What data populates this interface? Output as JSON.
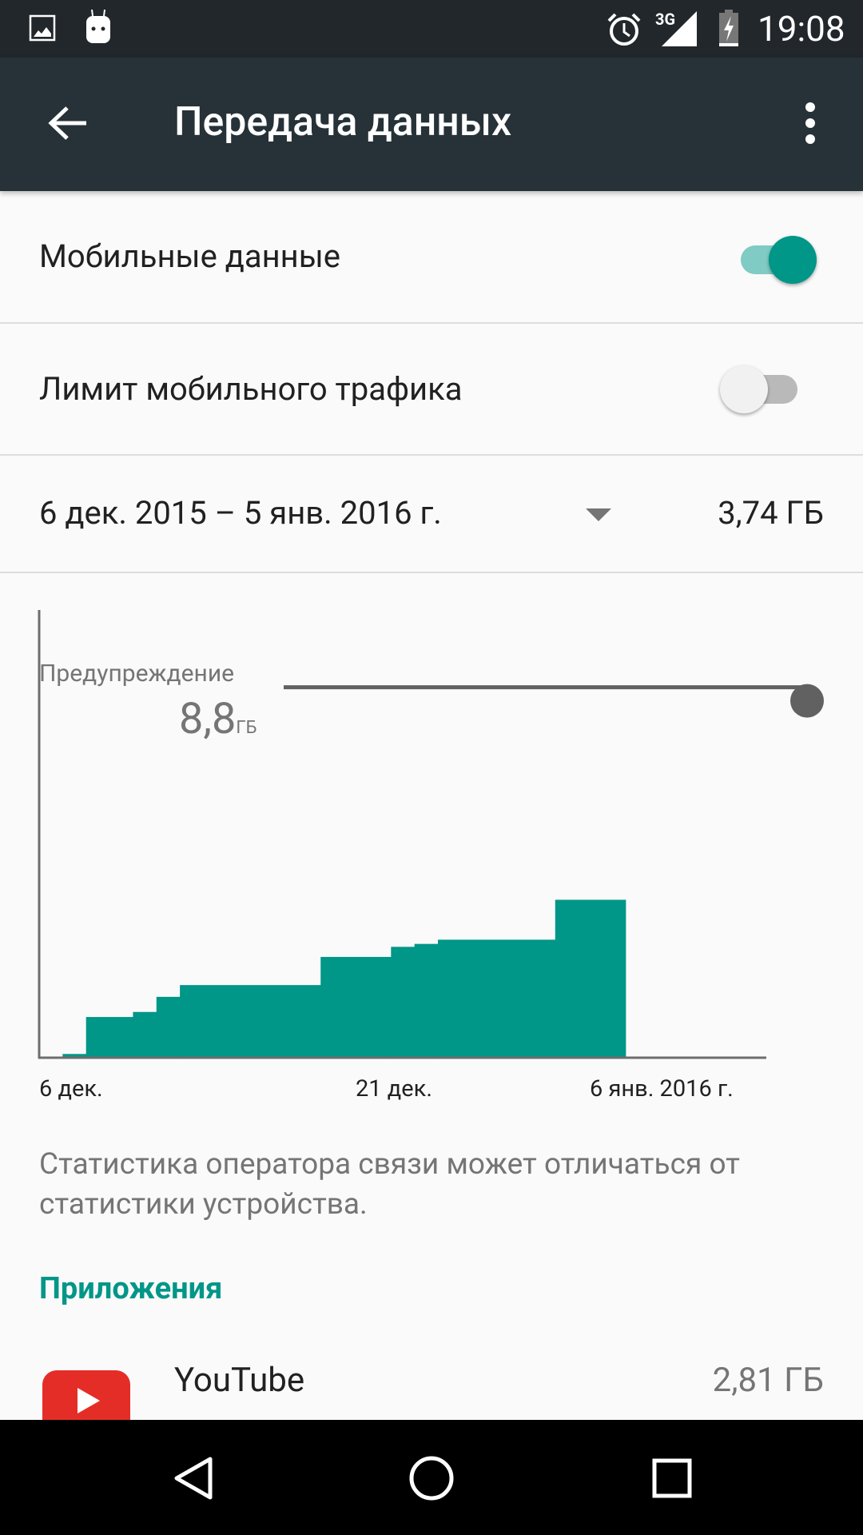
{
  "status_bar": {
    "time": "19:08",
    "network": "3G",
    "icons": [
      "image-icon",
      "android-icon",
      "alarm-icon",
      "signal-icon",
      "battery-charging-icon"
    ]
  },
  "app_bar": {
    "title": "Передача данных",
    "back_icon": "arrow-back-icon",
    "menu_icon": "more-vert-icon"
  },
  "settings": {
    "mobile_data": {
      "label": "Мобильные данные",
      "enabled": true
    },
    "data_limit": {
      "label": "Лимит мобильного трафика",
      "enabled": false
    }
  },
  "cycle": {
    "range": "6 дек. 2015 – 5 янв. 2016 г.",
    "total": "3,74 ГБ"
  },
  "warning": {
    "label": "Предупреждение",
    "value": "8,8",
    "unit": "ГБ"
  },
  "chart_data": {
    "type": "area",
    "title": "",
    "xlabel": "",
    "ylabel": "",
    "x_ticks": [
      "6 дек.",
      "21 дек.",
      "6 янв. 2016 г."
    ],
    "xlim": [
      "2015-12-06",
      "2016-01-06"
    ],
    "ylim": [
      0,
      10.6
    ],
    "unit": "ГБ",
    "warning_level": 8.8,
    "data_end": "2015-12-31",
    "series": [
      {
        "x": [
          "2015-12-07",
          "2015-12-08",
          "2015-12-10",
          "2015-12-11",
          "2015-12-12",
          "2015-12-18",
          "2015-12-21",
          "2015-12-22",
          "2015-12-23",
          "2015-12-28"
        ],
        "y": [
          0.07,
          0.95,
          1.07,
          1.43,
          1.71,
          2.38,
          2.62,
          2.69,
          2.79,
          3.74
        ]
      }
    ],
    "color": "#009688"
  },
  "note": "Статистика оператора связи может отличаться от статистики устройства.",
  "apps": {
    "header": "Приложения",
    "items": [
      {
        "name": "YouTube",
        "usage": "2,81 ГБ"
      }
    ]
  },
  "colors": {
    "accent": "#009688",
    "app_bar": "#263238",
    "status_bar": "#21272b"
  },
  "nav": {
    "icons": [
      "back-icon",
      "home-icon",
      "recents-icon"
    ]
  }
}
